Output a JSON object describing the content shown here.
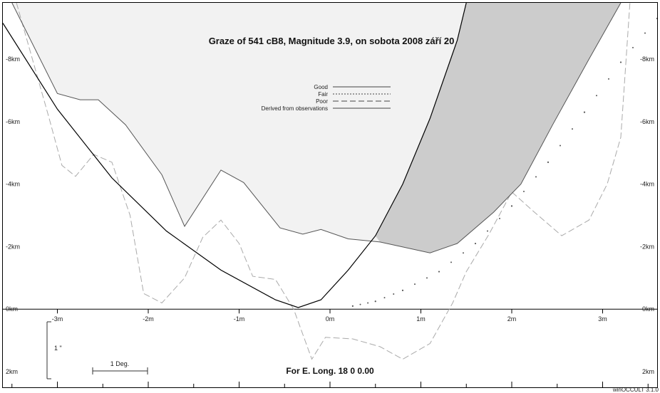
{
  "chart_data": {
    "type": "line",
    "title": "Graze of    541  cB8,  Magnitude  3.9,  on sobota 2008  září  20",
    "footer": "For E. Long.   18  0  0.00",
    "version_label": "winOCCULT 3.1.0",
    "xlim": [
      -3.6,
      3.6
    ],
    "ylim": [
      -2.5,
      9.8
    ],
    "x_ticks": [
      -3,
      -2,
      -1,
      0,
      1,
      2,
      3
    ],
    "x_tick_labels": [
      "-3m",
      "-2m",
      "-1m",
      "0m",
      "1m",
      "2m",
      "3m"
    ],
    "y_ticks": [
      8,
      6,
      4,
      2,
      0,
      -2
    ],
    "y_tick_labels": [
      "-8km",
      "-6km",
      "-4km",
      "-2km",
      "0km",
      "2km"
    ],
    "scale_bar": {
      "angle_label": "1 Deg.",
      "arcsec_label": "1 \""
    },
    "legend": {
      "placement": "top-center",
      "entries": [
        {
          "label": "Good",
          "style": "solid"
        },
        {
          "label": "Fair",
          "style": "dotted"
        },
        {
          "label": "Poor",
          "style": "dashed"
        },
        {
          "label": "Derived from observations",
          "style": "solid"
        }
      ]
    },
    "colors": {
      "bright_region": "#f2f2f2",
      "dark_region": "#cccccc",
      "profile_line": "#555555",
      "path_line": "#000000",
      "dashed_line": "#aaaaaa",
      "dot": "#555555",
      "axis": "#000000"
    },
    "limb_profile_solid": [
      [
        -3.5,
        9.8
      ],
      [
        -3.0,
        6.9
      ],
      [
        -2.75,
        6.7
      ],
      [
        -2.55,
        6.7
      ],
      [
        -2.25,
        5.9
      ],
      [
        -1.85,
        4.3
      ],
      [
        -1.6,
        2.65
      ],
      [
        -1.2,
        4.45
      ],
      [
        -0.95,
        4.05
      ],
      [
        -0.55,
        2.6
      ],
      [
        -0.3,
        2.4
      ],
      [
        -0.1,
        2.55
      ],
      [
        0.2,
        2.25
      ],
      [
        0.55,
        2.15
      ],
      [
        1.1,
        1.8
      ],
      [
        1.4,
        2.1
      ],
      [
        1.8,
        3.1
      ],
      [
        2.1,
        4.0
      ],
      [
        2.45,
        5.9
      ],
      [
        2.85,
        8.0
      ],
      [
        3.2,
        9.8
      ]
    ],
    "limb_profile_dashed": [
      [
        -3.45,
        9.8
      ],
      [
        -3.1,
        6.2
      ],
      [
        -2.95,
        4.6
      ],
      [
        -2.8,
        4.25
      ],
      [
        -2.6,
        4.95
      ],
      [
        -2.4,
        4.7
      ],
      [
        -2.2,
        3.0
      ],
      [
        -2.05,
        0.5
      ],
      [
        -1.85,
        0.2
      ],
      [
        -1.6,
        1.0
      ],
      [
        -1.4,
        2.3
      ],
      [
        -1.2,
        2.85
      ],
      [
        -1.0,
        2.1
      ],
      [
        -0.85,
        1.05
      ],
      [
        -0.6,
        0.95
      ],
      [
        -0.4,
        0.0
      ],
      [
        -0.2,
        -1.6
      ],
      [
        -0.05,
        -0.9
      ],
      [
        0.25,
        -0.95
      ],
      [
        0.55,
        -1.2
      ],
      [
        0.8,
        -1.6
      ],
      [
        1.1,
        -1.1
      ],
      [
        1.35,
        0.2
      ],
      [
        1.5,
        1.2
      ],
      [
        1.75,
        2.4
      ],
      [
        2.0,
        3.75
      ],
      [
        2.25,
        3.1
      ],
      [
        2.55,
        2.35
      ],
      [
        2.85,
        2.85
      ],
      [
        3.05,
        4.0
      ],
      [
        3.2,
        5.5
      ],
      [
        3.3,
        9.8
      ]
    ],
    "graze_path": [
      [
        -3.6,
        9.15
      ],
      [
        -3.0,
        6.4
      ],
      [
        -2.4,
        4.2
      ],
      [
        -1.8,
        2.5
      ],
      [
        -1.2,
        1.25
      ],
      [
        -0.6,
        0.3
      ],
      [
        -0.35,
        0.05
      ],
      [
        -0.1,
        0.3
      ],
      [
        0.2,
        1.25
      ],
      [
        0.5,
        2.35
      ],
      [
        0.8,
        4.0
      ],
      [
        1.1,
        6.1
      ],
      [
        1.4,
        8.6
      ],
      [
        1.5,
        9.8
      ]
    ],
    "dotted_path": [
      [
        0.25,
        0.1
      ],
      [
        0.5,
        0.25
      ],
      [
        0.8,
        0.6
      ],
      [
        1.2,
        1.2
      ],
      [
        1.6,
        2.1
      ],
      [
        2.0,
        3.3
      ],
      [
        2.4,
        4.7
      ],
      [
        2.8,
        6.3
      ],
      [
        3.2,
        7.9
      ],
      [
        3.6,
        9.3
      ]
    ]
  }
}
